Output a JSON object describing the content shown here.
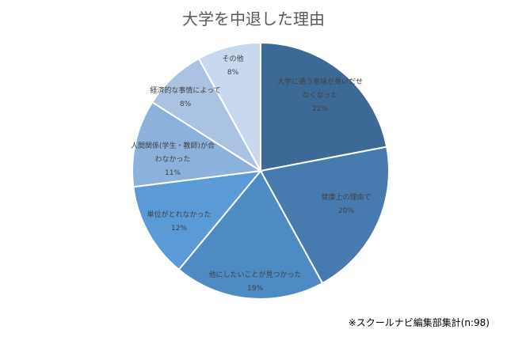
{
  "chart_data": {
    "type": "pie",
    "title": "大学を中退した理由",
    "start": "top, clockwise",
    "slices": [
      {
        "label": "大学に通う意味が見いだせなくなった",
        "lines": [
          "大学に通う意味が見いだせ",
          "なくなった"
        ],
        "value": 22,
        "value_label": "22%",
        "color": "#3d6996"
      },
      {
        "label": "健康上の理由で",
        "lines": [
          "健康上の理由で"
        ],
        "value": 20,
        "value_label": "20%",
        "color": "#477bb0"
      },
      {
        "label": "他にしたいことが見つかった",
        "lines": [
          "他にしたいことが見つかった"
        ],
        "value": 19,
        "value_label": "19%",
        "color": "#4e8bc4"
      },
      {
        "label": "単位がとれなかった",
        "lines": [
          "単位がとれなかった"
        ],
        "value": 12,
        "value_label": "12%",
        "color": "#5a9ad6"
      },
      {
        "label": "人間関係(学生・教師)が合わなかった",
        "lines": [
          "人間関係(学生・教師)が合",
          "わなかった"
        ],
        "value": 11,
        "value_label": "11%",
        "color": "#8cb1dc"
      },
      {
        "label": "経済的な事情によって",
        "lines": [
          "経済的な事情によって"
        ],
        "value": 8,
        "value_label": "8%",
        "color": "#abc3e3"
      },
      {
        "label": "その他",
        "lines": [
          "その他"
        ],
        "value": 8,
        "value_label": "8%",
        "color": "#c8d8ee"
      }
    ],
    "legend": "none",
    "footnote": "※スクールナビ編集部集計(n:98)"
  }
}
